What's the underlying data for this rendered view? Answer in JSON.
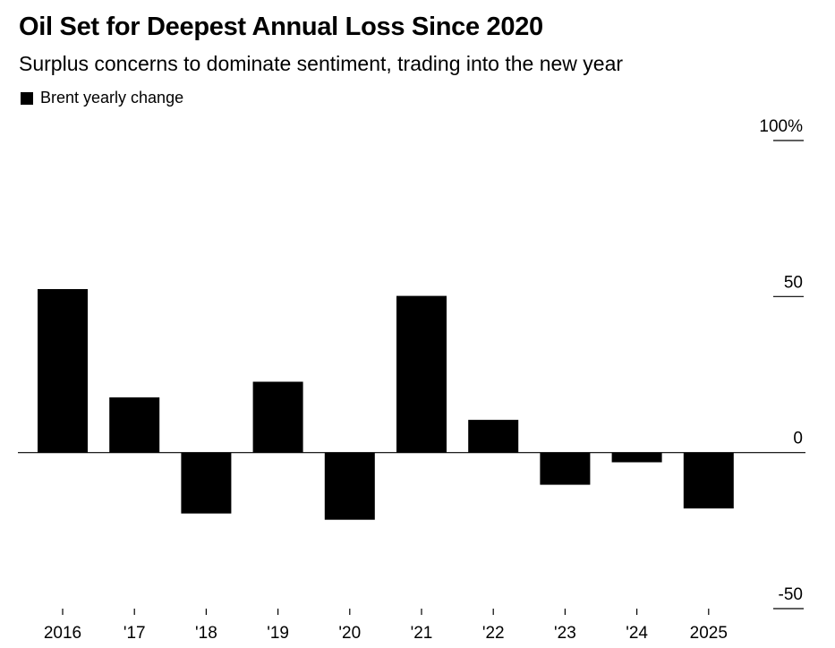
{
  "title": "Oil Set for Deepest Annual Loss Since 2020",
  "subtitle": "Surplus concerns to dominate sentiment, trading into the new year",
  "legend": {
    "label": "Brent yearly change",
    "icon": "square-swatch-icon"
  },
  "colors": {
    "bar": "#000000",
    "axis": "#000000",
    "background": "#ffffff"
  },
  "chart_data": {
    "type": "bar",
    "categories": [
      "2016",
      "'17",
      "'18",
      "'19",
      "'20",
      "'21",
      "'22",
      "'23",
      "'24",
      "2025"
    ],
    "series": [
      {
        "name": "Brent yearly change",
        "values": [
          52.4,
          17.7,
          -19.5,
          22.7,
          -21.5,
          50.2,
          10.5,
          -10.3,
          -3.1,
          -17.9
        ]
      }
    ],
    "ylim": [
      -50,
      100
    ],
    "yticks": [
      100,
      50,
      0,
      -50
    ],
    "ytick_labels": [
      "100%",
      "50",
      "0",
      "-50"
    ],
    "y_axis_position": "right",
    "grid": false,
    "legend_position": "top-left"
  }
}
